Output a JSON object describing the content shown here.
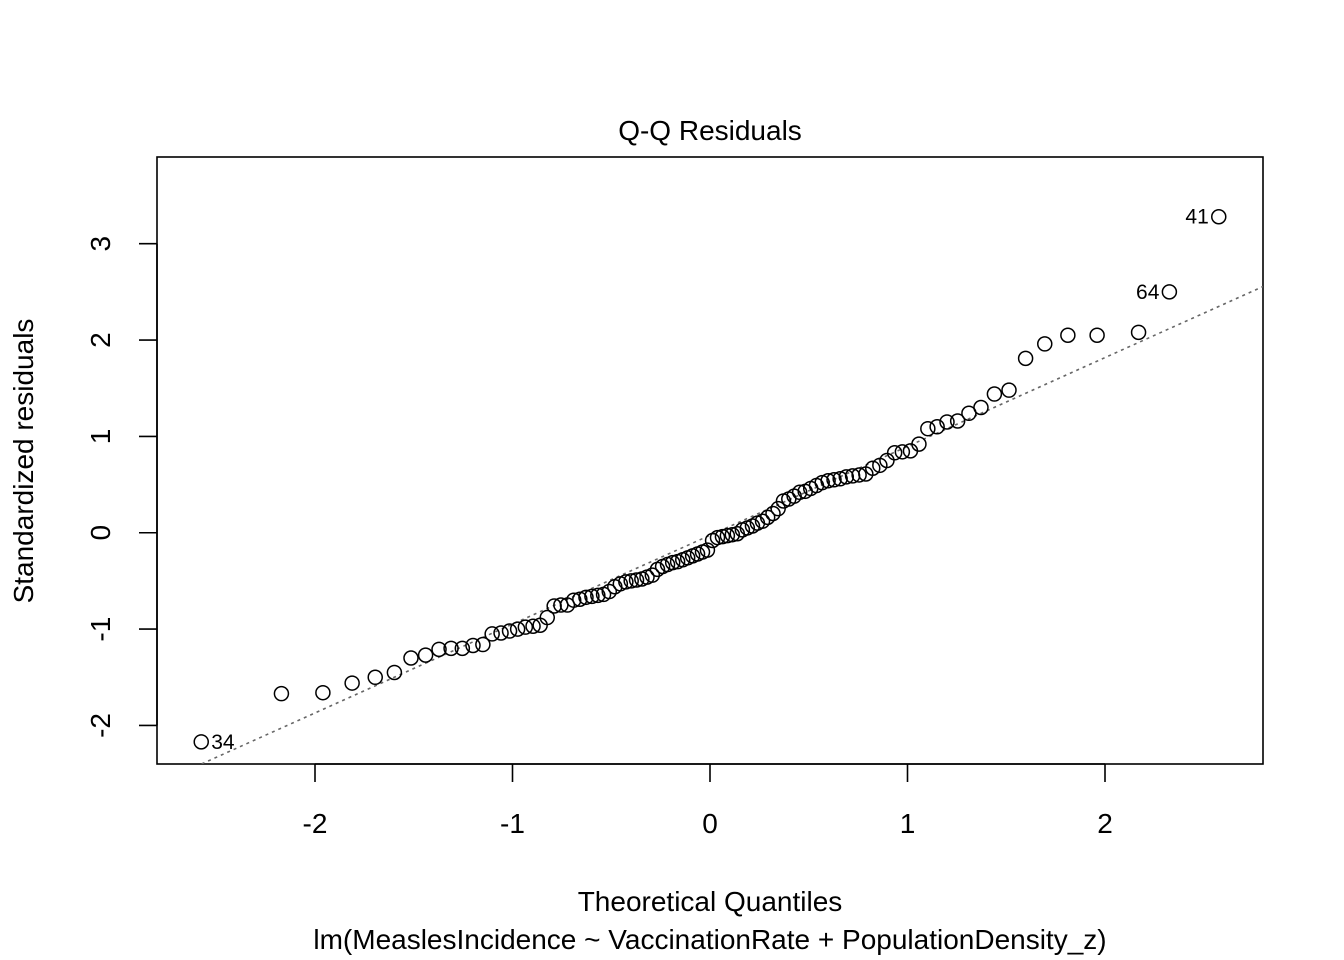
{
  "chart_data": {
    "type": "scatter",
    "title": "Q-Q Residuals",
    "xlabel": "Theoretical Quantiles",
    "subtitle": "lm(MeaslesIncidence ~ VaccinationRate + PopulationDensity_z)",
    "ylabel": "Standardized residuals",
    "xlim": [
      -2.8,
      2.8
    ],
    "ylim": [
      -2.4,
      3.9
    ],
    "xticks": [
      -2,
      -1,
      0,
      1,
      2
    ],
    "xtick_labels": [
      "-2",
      "-1",
      "0",
      "1",
      "2"
    ],
    "yticks": [
      -2,
      -1,
      0,
      1,
      2,
      3
    ],
    "ytick_labels": [
      "-2",
      "-1",
      "0",
      "1",
      "2",
      "3"
    ],
    "reference_line": {
      "style": "dotted",
      "color": "#666666",
      "slope": 0.922,
      "intercept": -0.026
    },
    "points": [
      [
        -2.576,
        -2.17
      ],
      [
        -2.17,
        -1.67
      ],
      [
        -1.96,
        -1.66
      ],
      [
        -1.812,
        -1.56
      ],
      [
        -1.695,
        -1.5
      ],
      [
        -1.598,
        -1.45
      ],
      [
        -1.514,
        -1.3
      ],
      [
        -1.44,
        -1.27
      ],
      [
        -1.372,
        -1.21
      ],
      [
        -1.311,
        -1.2
      ],
      [
        -1.254,
        -1.2
      ],
      [
        -1.2,
        -1.17
      ],
      [
        -1.15,
        -1.16
      ],
      [
        -1.103,
        -1.05
      ],
      [
        -1.058,
        -1.04
      ],
      [
        -1.015,
        -1.02
      ],
      [
        -0.974,
        -1.0
      ],
      [
        -0.935,
        -0.98
      ],
      [
        -0.896,
        -0.97
      ],
      [
        -0.86,
        -0.96
      ],
      [
        -0.824,
        -0.88
      ],
      [
        -0.789,
        -0.76
      ],
      [
        -0.755,
        -0.75
      ],
      [
        -0.722,
        -0.75
      ],
      [
        -0.69,
        -0.7
      ],
      [
        -0.659,
        -0.69
      ],
      [
        -0.628,
        -0.67
      ],
      [
        -0.598,
        -0.66
      ],
      [
        -0.568,
        -0.65
      ],
      [
        -0.539,
        -0.64
      ],
      [
        -0.51,
        -0.61
      ],
      [
        -0.482,
        -0.56
      ],
      [
        -0.454,
        -0.53
      ],
      [
        -0.426,
        -0.51
      ],
      [
        -0.399,
        -0.5
      ],
      [
        -0.372,
        -0.49
      ],
      [
        -0.345,
        -0.48
      ],
      [
        -0.319,
        -0.46
      ],
      [
        -0.292,
        -0.44
      ],
      [
        -0.266,
        -0.38
      ],
      [
        -0.24,
        -0.35
      ],
      [
        -0.215,
        -0.33
      ],
      [
        -0.189,
        -0.31
      ],
      [
        -0.164,
        -0.3
      ],
      [
        -0.138,
        -0.28
      ],
      [
        -0.113,
        -0.26
      ],
      [
        -0.088,
        -0.24
      ],
      [
        -0.063,
        -0.22
      ],
      [
        -0.038,
        -0.2
      ],
      [
        -0.013,
        -0.18
      ],
      [
        0.013,
        -0.08
      ],
      [
        0.038,
        -0.05
      ],
      [
        0.063,
        -0.04
      ],
      [
        0.088,
        -0.03
      ],
      [
        0.113,
        -0.02
      ],
      [
        0.138,
        -0.01
      ],
      [
        0.164,
        0.03
      ],
      [
        0.189,
        0.05
      ],
      [
        0.215,
        0.07
      ],
      [
        0.24,
        0.1
      ],
      [
        0.266,
        0.12
      ],
      [
        0.292,
        0.16
      ],
      [
        0.319,
        0.2
      ],
      [
        0.345,
        0.25
      ],
      [
        0.372,
        0.33
      ],
      [
        0.399,
        0.35
      ],
      [
        0.426,
        0.38
      ],
      [
        0.454,
        0.42
      ],
      [
        0.482,
        0.43
      ],
      [
        0.51,
        0.46
      ],
      [
        0.539,
        0.49
      ],
      [
        0.568,
        0.52
      ],
      [
        0.598,
        0.54
      ],
      [
        0.628,
        0.55
      ],
      [
        0.659,
        0.56
      ],
      [
        0.69,
        0.58
      ],
      [
        0.722,
        0.59
      ],
      [
        0.755,
        0.6
      ],
      [
        0.789,
        0.61
      ],
      [
        0.824,
        0.67
      ],
      [
        0.86,
        0.7
      ],
      [
        0.896,
        0.75
      ],
      [
        0.935,
        0.83
      ],
      [
        0.974,
        0.84
      ],
      [
        1.015,
        0.85
      ],
      [
        1.058,
        0.92
      ],
      [
        1.103,
        1.08
      ],
      [
        1.15,
        1.1
      ],
      [
        1.2,
        1.15
      ],
      [
        1.254,
        1.16
      ],
      [
        1.311,
        1.24
      ],
      [
        1.372,
        1.3
      ],
      [
        1.44,
        1.44
      ],
      [
        1.514,
        1.48
      ],
      [
        1.598,
        1.81
      ],
      [
        1.695,
        1.96
      ],
      [
        1.812,
        2.05
      ],
      [
        1.96,
        2.05
      ],
      [
        2.17,
        2.08
      ],
      [
        2.326,
        2.5
      ],
      [
        2.576,
        3.28
      ]
    ],
    "labeled_points": [
      {
        "label": "34",
        "x": -2.576,
        "y": -2.17,
        "side": "right"
      },
      {
        "label": "64",
        "x": 2.326,
        "y": 2.5,
        "side": "left"
      },
      {
        "label": "41",
        "x": 2.576,
        "y": 3.28,
        "side": "left"
      }
    ],
    "grid": false,
    "legend": "none"
  }
}
